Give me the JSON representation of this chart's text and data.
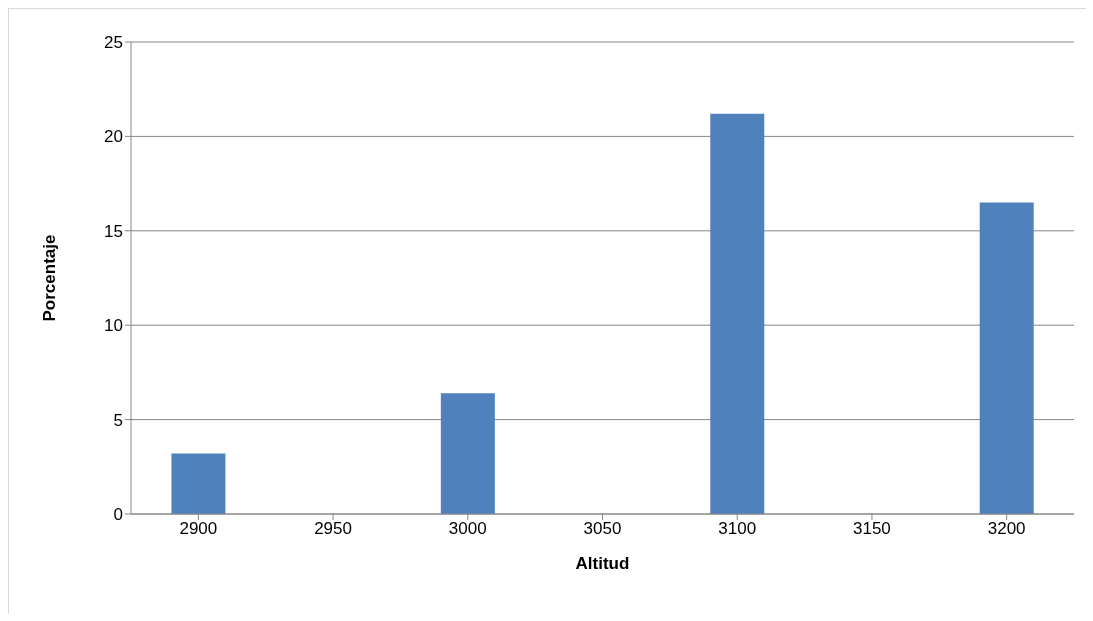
{
  "chart_data": {
    "type": "bar",
    "xlabel": "Altitud",
    "ylabel": "Porcentaje",
    "categories": [
      "2900",
      "2950",
      "3000",
      "3050",
      "3100",
      "3150",
      "3200"
    ],
    "values": [
      3.2,
      0,
      6.4,
      0,
      21.2,
      0,
      16.5
    ],
    "color": "#4f81bd",
    "ylim": [
      0,
      25
    ],
    "yticks": [
      0,
      5,
      10,
      15,
      20,
      25
    ],
    "grid": "y"
  }
}
